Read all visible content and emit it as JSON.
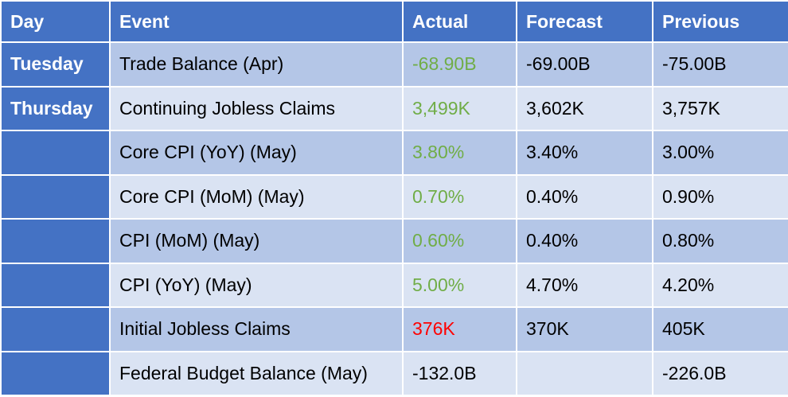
{
  "colors": {
    "header_bg": "#4472c4",
    "band_dark": "#b4c6e7",
    "band_light": "#dae3f3",
    "actual_better": "#70ad47",
    "actual_worse": "#ff0000",
    "neutral_text": "#000000"
  },
  "header": {
    "day": "Day",
    "event": "Event",
    "actual": "Actual",
    "forecast": "Forecast",
    "previous": "Previous"
  },
  "rows": [
    {
      "day": "Tuesday",
      "event": "Trade Balance (Apr)",
      "actual": "-68.90B",
      "actual_status": "better",
      "forecast": "-69.00B",
      "previous": "-75.00B"
    },
    {
      "day": "Thursday",
      "event": "Continuing Jobless Claims",
      "actual": "3,499K",
      "actual_status": "better",
      "forecast": "3,602K",
      "previous": "3,757K"
    },
    {
      "day": "",
      "event": "Core CPI (YoY) (May)",
      "actual": "3.80%",
      "actual_status": "better",
      "forecast": "3.40%",
      "previous": "3.00%"
    },
    {
      "day": "",
      "event": "Core CPI (MoM) (May)",
      "actual": "0.70%",
      "actual_status": "better",
      "forecast": "0.40%",
      "previous": "0.90%"
    },
    {
      "day": "",
      "event": "CPI (MoM) (May)",
      "actual": "0.60%",
      "actual_status": "better",
      "forecast": "0.40%",
      "previous": "0.80%"
    },
    {
      "day": "",
      "event": "CPI (YoY) (May)",
      "actual": "5.00%",
      "actual_status": "better",
      "forecast": "4.70%",
      "previous": "4.20%"
    },
    {
      "day": "",
      "event": "Initial Jobless Claims",
      "actual": "376K",
      "actual_status": "worse",
      "forecast": "370K",
      "previous": "405K"
    },
    {
      "day": "",
      "event": "Federal Budget Balance (May)",
      "actual": "-132.0B",
      "actual_status": "neutral",
      "forecast": "",
      "previous": "-226.0B"
    }
  ]
}
